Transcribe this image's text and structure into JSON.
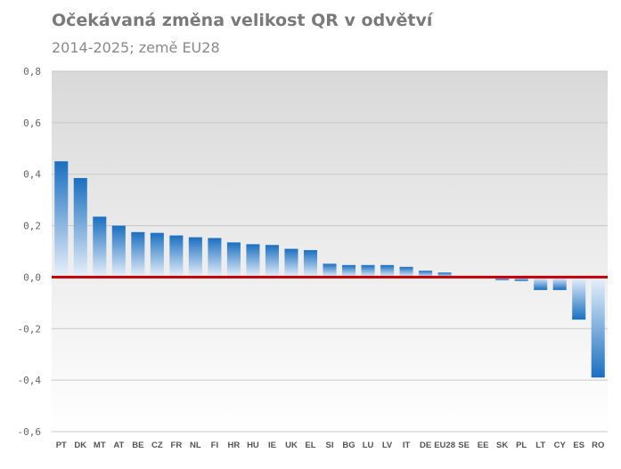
{
  "chart_data": {
    "type": "bar",
    "title": "Očekávaná změna velikost QR v odvětví",
    "subtitle": "2014-2025; země EU28",
    "xlabel": "",
    "ylabel": "",
    "ylim": [
      -0.6,
      0.8
    ],
    "yticks": [
      "0,8",
      "0,6",
      "0,4",
      "0,2",
      "0,0",
      "-0,2",
      "-0,4",
      "-0,6"
    ],
    "yticks_values": [
      0.8,
      0.6,
      0.4,
      0.2,
      0.0,
      -0.2,
      -0.4,
      -0.6
    ],
    "grid": true,
    "legend": "none",
    "categories": [
      "PT",
      "DK",
      "MT",
      "AT",
      "BE",
      "CZ",
      "FR",
      "NL",
      "FI",
      "HR",
      "HU",
      "IE",
      "UK",
      "EL",
      "SI",
      "BG",
      "LU",
      "LV",
      "IT",
      "DE",
      "EU28",
      "SE",
      "EE",
      "SK",
      "PL",
      "LT",
      "CY",
      "ES",
      "RO"
    ],
    "values": [
      0.45,
      0.385,
      0.235,
      0.2,
      0.175,
      0.172,
      0.162,
      0.155,
      0.152,
      0.135,
      0.128,
      0.125,
      0.11,
      0.105,
      0.052,
      0.047,
      0.047,
      0.047,
      0.04,
      0.025,
      0.018,
      0.0,
      0.0,
      -0.012,
      -0.015,
      -0.05,
      -0.05,
      -0.165,
      -0.39
    ],
    "colors": {
      "bar": "#1a6fc0",
      "bar_fade": "#e8f1fb",
      "zero_line": "#c00000",
      "grid": "#c8c8c8"
    }
  }
}
